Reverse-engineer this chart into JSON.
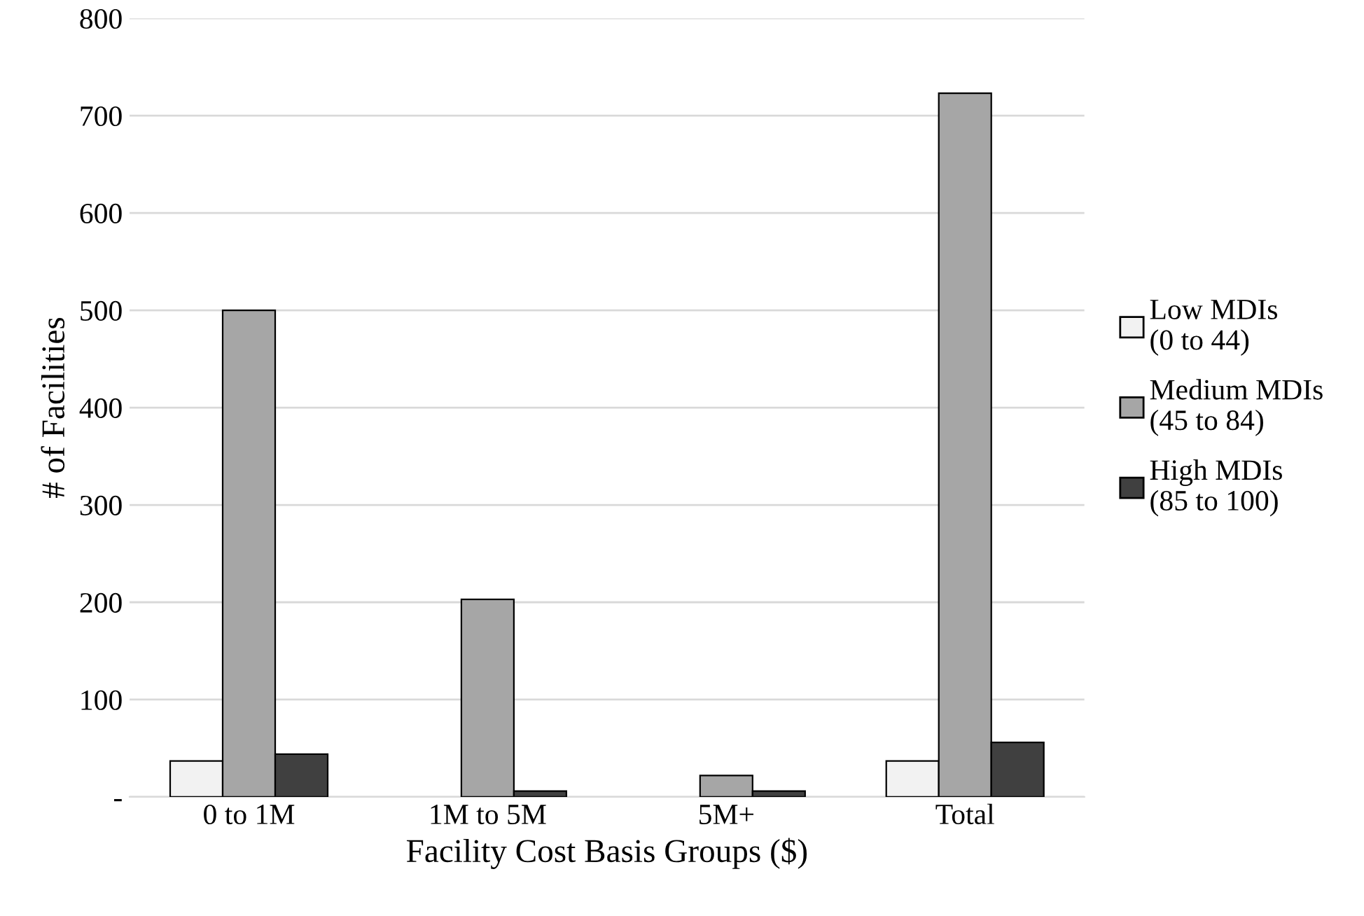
{
  "chart_data": {
    "type": "bar",
    "xlabel": "Facility Cost Basis Groups ($)",
    "ylabel": "# of Facilities",
    "categories": [
      "0 to 1M",
      "1M to 5M",
      "5M+",
      "Total"
    ],
    "series": [
      {
        "name": "Low MDIs\n(0 to 44)",
        "color": "#f2f2f2",
        "values": [
          37,
          0,
          0,
          37
        ]
      },
      {
        "name": "Medium MDIs\n(45 to 84)",
        "color": "#a6a6a6",
        "values": [
          500,
          203,
          22,
          723
        ]
      },
      {
        "name": "High MDIs\n(85 to 100)",
        "color": "#404040",
        "values": [
          44,
          6,
          6,
          56
        ]
      }
    ],
    "ylim": [
      0,
      800
    ],
    "yticks": [
      {
        "value": 0,
        "label": "-"
      },
      100,
      200,
      300,
      400,
      500,
      600,
      700,
      800
    ],
    "grid": "y",
    "legend": "right"
  }
}
